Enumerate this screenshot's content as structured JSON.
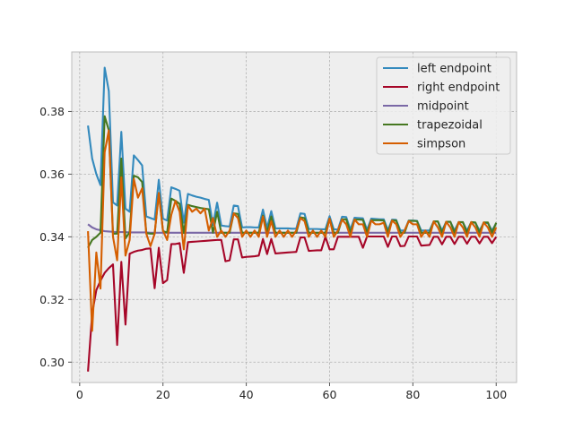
{
  "chart_data": {
    "type": "line",
    "title": "",
    "xlabel": "",
    "ylabel": "",
    "xlim": [
      -1.9,
      104.9
    ],
    "ylim": [
      0.2935,
      0.399
    ],
    "xticks": [
      0,
      20,
      40,
      60,
      80,
      100
    ],
    "xtick_labels": [
      "0",
      "20",
      "40",
      "60",
      "80",
      "100"
    ],
    "yticks": [
      0.3,
      0.32,
      0.34,
      0.36,
      0.38
    ],
    "ytick_labels": [
      "0.30",
      "0.32",
      "0.34",
      "0.36",
      "0.38"
    ],
    "grid": true,
    "legend_position": "top-right",
    "background": "#eeeeee",
    "series": [
      {
        "name": "left endpoint",
        "color": "#348abd",
        "x": [
          2,
          3,
          4,
          5,
          6,
          7,
          8,
          9,
          10,
          11,
          12,
          13,
          14,
          15,
          16,
          17,
          18,
          19,
          20,
          21,
          22,
          23,
          24,
          25,
          26,
          27,
          28,
          29,
          30,
          31,
          32,
          33,
          34,
          35,
          36,
          37,
          38,
          39,
          40,
          41,
          42,
          43,
          44,
          45,
          46,
          47,
          48,
          49,
          50,
          51,
          52,
          53,
          54,
          55,
          56,
          57,
          58,
          59,
          60,
          61,
          62,
          63,
          64,
          65,
          66,
          67,
          68,
          69,
          70,
          71,
          72,
          73,
          74,
          75,
          76,
          77,
          78,
          79,
          80,
          81,
          82,
          83,
          84,
          85,
          86,
          87,
          88,
          89,
          90,
          91,
          92,
          93,
          94,
          95,
          96,
          97,
          98,
          99,
          100
        ],
        "y": [
          0.3755,
          0.365,
          0.36,
          0.3565,
          0.394,
          0.3865,
          0.351,
          0.35,
          0.3735,
          0.349,
          0.348,
          0.366,
          0.3645,
          0.3628,
          0.3465,
          0.346,
          0.3455,
          0.3582,
          0.3458,
          0.3452,
          0.3558,
          0.3553,
          0.3547,
          0.3445,
          0.3537,
          0.3532,
          0.3528,
          0.3525,
          0.3521,
          0.3518,
          0.3438,
          0.3509,
          0.3436,
          0.3434,
          0.3433,
          0.35,
          0.3498,
          0.343,
          0.3431,
          0.3431,
          0.343,
          0.343,
          0.3487,
          0.3428,
          0.3482,
          0.3427,
          0.3427,
          0.3427,
          0.3427,
          0.3426,
          0.3426,
          0.3475,
          0.3473,
          0.3425,
          0.3425,
          0.3425,
          0.3424,
          0.3424,
          0.3466,
          0.3424,
          0.3423,
          0.3464,
          0.3463,
          0.3423,
          0.3461,
          0.346,
          0.3459,
          0.3422,
          0.3458,
          0.3457,
          0.3456,
          0.3456,
          0.3421,
          0.3455,
          0.3454,
          0.342,
          0.342,
          0.3452,
          0.3452,
          0.3451,
          0.342,
          0.342,
          0.342,
          0.3449,
          0.3449,
          0.342,
          0.3448,
          0.3448,
          0.342,
          0.3447,
          0.3446,
          0.342,
          0.3446,
          0.3445,
          0.342,
          0.3444,
          0.3444,
          0.342,
          0.3443
        ]
      },
      {
        "name": "right endpoint",
        "color": "#a60628",
        "x": [
          2,
          3,
          4,
          5,
          6,
          7,
          8,
          9,
          10,
          11,
          12,
          13,
          14,
          15,
          16,
          17,
          18,
          19,
          20,
          21,
          22,
          23,
          24,
          25,
          26,
          27,
          28,
          29,
          30,
          31,
          32,
          33,
          34,
          35,
          36,
          37,
          38,
          39,
          40,
          41,
          42,
          43,
          44,
          45,
          46,
          47,
          48,
          49,
          50,
          51,
          52,
          53,
          54,
          55,
          56,
          57,
          58,
          59,
          60,
          61,
          62,
          63,
          64,
          65,
          66,
          67,
          68,
          69,
          70,
          71,
          72,
          73,
          74,
          75,
          76,
          77,
          78,
          79,
          80,
          81,
          82,
          83,
          84,
          85,
          86,
          87,
          88,
          89,
          90,
          91,
          92,
          93,
          94,
          95,
          96,
          97,
          98,
          99,
          100
        ],
        "y": [
          0.297,
          0.3155,
          0.323,
          0.326,
          0.3285,
          0.33,
          0.3312,
          0.3055,
          0.332,
          0.312,
          0.3346,
          0.3352,
          0.3356,
          0.3358,
          0.3362,
          0.3363,
          0.3236,
          0.3365,
          0.3252,
          0.3262,
          0.3377,
          0.3377,
          0.338,
          0.3285,
          0.3383,
          0.3384,
          0.3385,
          0.3386,
          0.3387,
          0.3388,
          0.3389,
          0.339,
          0.339,
          0.3322,
          0.3325,
          0.3392,
          0.3392,
          0.3334,
          0.3336,
          0.3337,
          0.3338,
          0.334,
          0.3393,
          0.3345,
          0.3393,
          0.3347,
          0.3348,
          0.3349,
          0.335,
          0.3351,
          0.3352,
          0.3398,
          0.3398,
          0.3355,
          0.3356,
          0.3357,
          0.3357,
          0.34,
          0.336,
          0.336,
          0.34,
          0.34,
          0.34,
          0.34,
          0.34,
          0.34,
          0.3365,
          0.3401,
          0.3401,
          0.3401,
          0.3401,
          0.3401,
          0.3368,
          0.3401,
          0.3401,
          0.337,
          0.3371,
          0.3401,
          0.3401,
          0.3401,
          0.3372,
          0.3373,
          0.3374,
          0.34,
          0.34,
          0.3376,
          0.34,
          0.34,
          0.3377,
          0.34,
          0.34,
          0.3378,
          0.34,
          0.34,
          0.3379,
          0.34,
          0.34,
          0.338,
          0.34
        ]
      },
      {
        "name": "midpoint",
        "color": "#7a68a6",
        "x": [
          2,
          3,
          4,
          5,
          6,
          7,
          8,
          9,
          10,
          11,
          12,
          13,
          14,
          15,
          16,
          17,
          18,
          19,
          20,
          21,
          22,
          23,
          24,
          25,
          26,
          27,
          28,
          29,
          30,
          31,
          32,
          33,
          34,
          35,
          36,
          37,
          38,
          39,
          40,
          41,
          42,
          43,
          44,
          45,
          46,
          47,
          48,
          49,
          50,
          51,
          52,
          53,
          54,
          55,
          56,
          57,
          58,
          59,
          60,
          61,
          62,
          63,
          64,
          65,
          66,
          67,
          68,
          69,
          70,
          71,
          72,
          73,
          74,
          75,
          76,
          77,
          78,
          79,
          80,
          81,
          82,
          83,
          84,
          85,
          86,
          87,
          88,
          89,
          90,
          91,
          92,
          93,
          94,
          95,
          96,
          97,
          98,
          99,
          100
        ],
        "y": [
          0.344,
          0.343,
          0.3424,
          0.3421,
          0.3418,
          0.3417,
          0.3416,
          0.3415,
          0.3415,
          0.3415,
          0.3414,
          0.3414,
          0.3414,
          0.3414,
          0.3414,
          0.3413,
          0.3413,
          0.3413,
          0.3413,
          0.3413,
          0.3413,
          0.3413,
          0.3413,
          0.3413,
          0.3413,
          0.3413,
          0.3413,
          0.3413,
          0.3413,
          0.3413,
          0.3413,
          0.3413,
          0.3413,
          0.3413,
          0.3413,
          0.3413,
          0.3413,
          0.3413,
          0.3413,
          0.3413,
          0.3413,
          0.3413,
          0.3413,
          0.3413,
          0.3413,
          0.3413,
          0.3413,
          0.3413,
          0.3413,
          0.3413,
          0.3413,
          0.3413,
          0.3413,
          0.3413,
          0.3413,
          0.3413,
          0.3413,
          0.3413,
          0.3413,
          0.3413,
          0.3413,
          0.3413,
          0.3413,
          0.3413,
          0.3413,
          0.3413,
          0.3413,
          0.3413,
          0.3413,
          0.3413,
          0.3413,
          0.3413,
          0.3413,
          0.3413,
          0.3413,
          0.3413,
          0.3413,
          0.3413,
          0.3413,
          0.3413,
          0.3413,
          0.3413,
          0.3413,
          0.3413,
          0.3413,
          0.3413,
          0.3413,
          0.3413,
          0.3413,
          0.3413,
          0.3413,
          0.3413,
          0.3413,
          0.3413,
          0.3413,
          0.3413,
          0.3413,
          0.3413,
          0.3413
        ]
      },
      {
        "name": "trapezoidal",
        "color": "#467821",
        "x": [
          2,
          3,
          4,
          5,
          6,
          7,
          8,
          9,
          10,
          11,
          12,
          13,
          14,
          15,
          16,
          17,
          18,
          19,
          20,
          21,
          22,
          23,
          24,
          25,
          26,
          27,
          28,
          29,
          30,
          31,
          32,
          33,
          34,
          35,
          36,
          37,
          38,
          39,
          40,
          41,
          42,
          43,
          44,
          45,
          46,
          47,
          48,
          49,
          50,
          51,
          52,
          53,
          54,
          55,
          56,
          57,
          58,
          59,
          60,
          61,
          62,
          63,
          64,
          65,
          66,
          67,
          68,
          69,
          70,
          71,
          72,
          73,
          74,
          75,
          76,
          77,
          78,
          79,
          80,
          81,
          82,
          83,
          84,
          85,
          86,
          87,
          88,
          89,
          90,
          91,
          92,
          93,
          94,
          95,
          96,
          97,
          98,
          99,
          100
        ],
        "y": [
          0.3365,
          0.339,
          0.34,
          0.3413,
          0.3785,
          0.374,
          0.341,
          0.341,
          0.365,
          0.3395,
          0.3415,
          0.3595,
          0.359,
          0.3575,
          0.3412,
          0.341,
          0.341,
          0.354,
          0.3418,
          0.3414,
          0.3522,
          0.3515,
          0.3505,
          0.3412,
          0.3502,
          0.3498,
          0.3495,
          0.3492,
          0.349,
          0.3488,
          0.3413,
          0.348,
          0.3413,
          0.3413,
          0.3413,
          0.3475,
          0.3473,
          0.3413,
          0.3413,
          0.3413,
          0.3413,
          0.3413,
          0.3468,
          0.3413,
          0.3465,
          0.3413,
          0.3413,
          0.3413,
          0.3413,
          0.3413,
          0.3413,
          0.3462,
          0.346,
          0.3413,
          0.3413,
          0.3413,
          0.3413,
          0.3413,
          0.3458,
          0.3413,
          0.3413,
          0.3456,
          0.3456,
          0.3413,
          0.3455,
          0.3455,
          0.3454,
          0.3413,
          0.3453,
          0.3453,
          0.3453,
          0.3452,
          0.3413,
          0.3452,
          0.3452,
          0.3413,
          0.3413,
          0.3451,
          0.3451,
          0.345,
          0.3413,
          0.3413,
          0.3413,
          0.3449,
          0.3449,
          0.3413,
          0.3448,
          0.3448,
          0.3413,
          0.3447,
          0.3447,
          0.3413,
          0.3447,
          0.3446,
          0.3413,
          0.3446,
          0.3446,
          0.3413,
          0.3445
        ]
      },
      {
        "name": "simpson",
        "color": "#d55e00",
        "x": [
          2,
          3,
          4,
          5,
          6,
          7,
          8,
          9,
          10,
          11,
          12,
          13,
          14,
          15,
          16,
          17,
          18,
          19,
          20,
          21,
          22,
          23,
          24,
          25,
          26,
          27,
          28,
          29,
          30,
          31,
          32,
          33,
          34,
          35,
          36,
          37,
          38,
          39,
          40,
          41,
          42,
          43,
          44,
          45,
          46,
          47,
          48,
          49,
          50,
          51,
          52,
          53,
          54,
          55,
          56,
          57,
          58,
          59,
          60,
          61,
          62,
          63,
          64,
          65,
          66,
          67,
          68,
          69,
          70,
          71,
          72,
          73,
          74,
          75,
          76,
          77,
          78,
          79,
          80,
          81,
          82,
          83,
          84,
          85,
          86,
          87,
          88,
          89,
          90,
          91,
          92,
          93,
          94,
          95,
          96,
          97,
          98,
          99,
          100
        ],
        "y": [
          0.3418,
          0.31,
          0.335,
          0.3235,
          0.367,
          0.374,
          0.34,
          0.3325,
          0.359,
          0.334,
          0.339,
          0.3585,
          0.3525,
          0.3555,
          0.341,
          0.337,
          0.341,
          0.354,
          0.342,
          0.339,
          0.347,
          0.3515,
          0.348,
          0.336,
          0.35,
          0.348,
          0.349,
          0.3475,
          0.349,
          0.342,
          0.346,
          0.34,
          0.342,
          0.34,
          0.342,
          0.3475,
          0.346,
          0.34,
          0.342,
          0.34,
          0.342,
          0.34,
          0.3465,
          0.34,
          0.345,
          0.34,
          0.342,
          0.34,
          0.342,
          0.34,
          0.342,
          0.346,
          0.345,
          0.34,
          0.342,
          0.34,
          0.342,
          0.34,
          0.3458,
          0.34,
          0.342,
          0.3455,
          0.344,
          0.34,
          0.3455,
          0.344,
          0.344,
          0.34,
          0.3452,
          0.344,
          0.344,
          0.3445,
          0.34,
          0.3452,
          0.344,
          0.34,
          0.342,
          0.345,
          0.344,
          0.344,
          0.34,
          0.342,
          0.34,
          0.3449,
          0.343,
          0.34,
          0.3448,
          0.343,
          0.34,
          0.3447,
          0.343,
          0.34,
          0.3447,
          0.343,
          0.34,
          0.3446,
          0.343,
          0.34,
          0.343
        ]
      }
    ]
  }
}
